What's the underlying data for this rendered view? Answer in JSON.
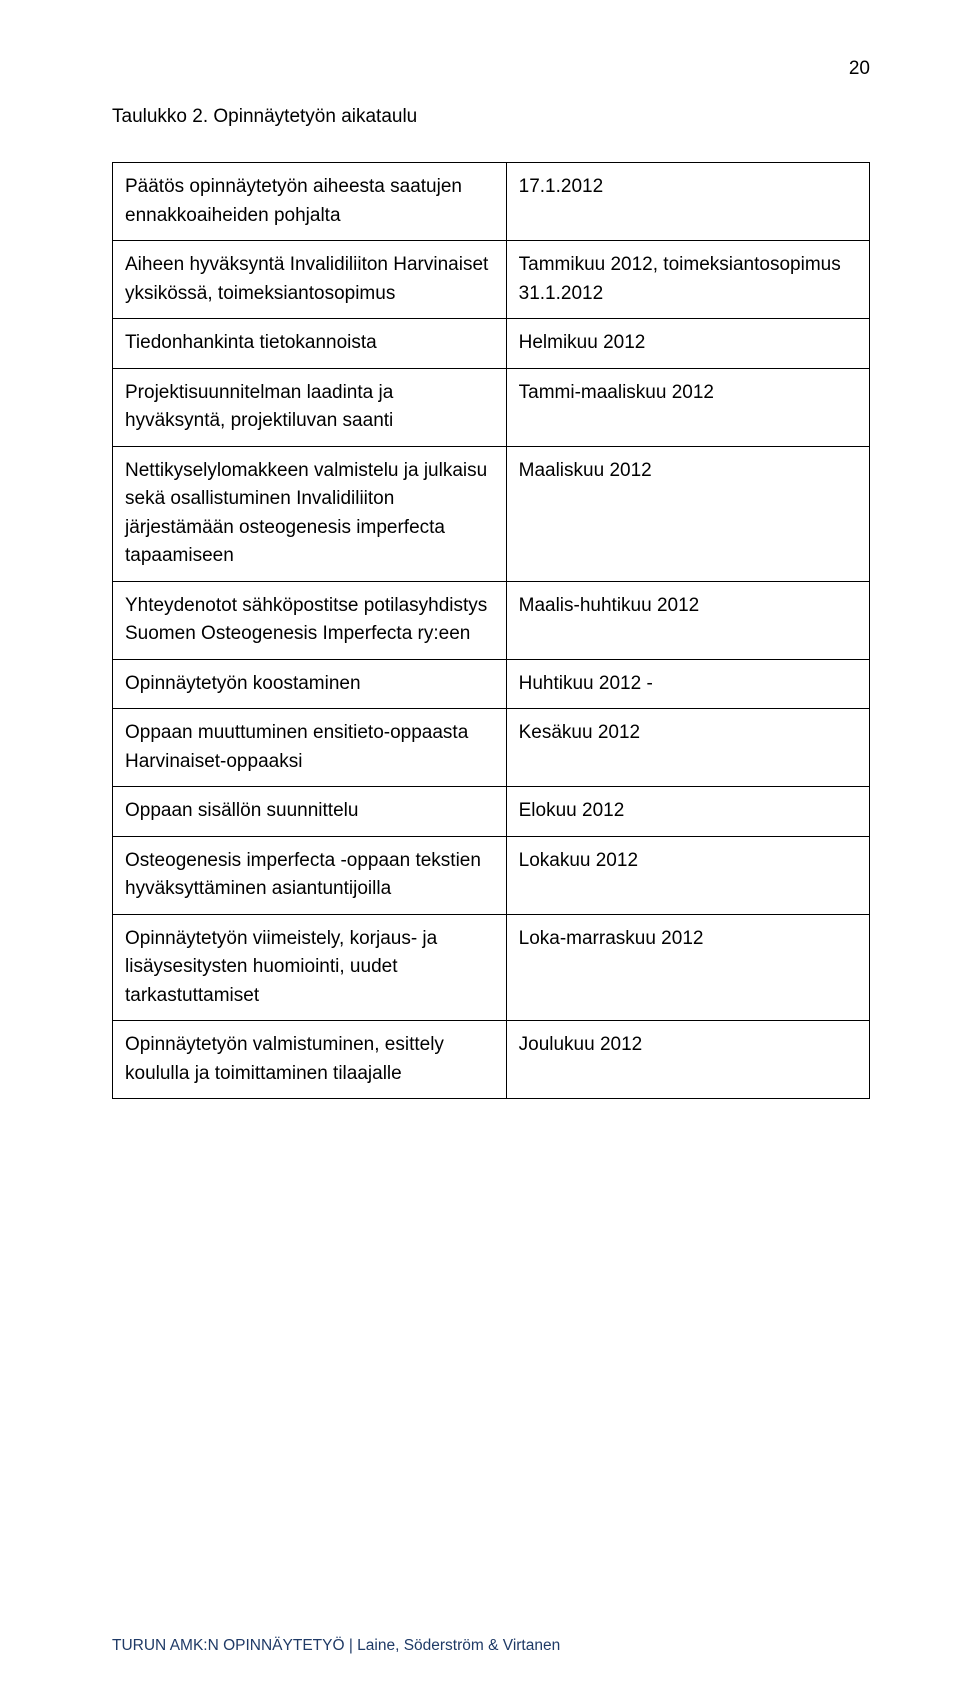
{
  "page_number": "20",
  "caption": "Taulukko 2. Opinnäytetyön aikataulu",
  "rows": [
    {
      "left": "Päätös opinnäytetyön aiheesta saatujen ennakkoaiheiden pohjalta",
      "right": "17.1.2012"
    },
    {
      "left": "Aiheen hyväksyntä Invalidiliiton Harvinaiset yksikössä, toimeksiantosopimus",
      "right": "Tammikuu 2012, toimeksiantosopimus 31.1.2012"
    },
    {
      "left": "Tiedonhankinta tietokannoista",
      "right": "Helmikuu 2012"
    },
    {
      "left": "Projektisuunnitelman laadinta ja hyväksyntä, projektiluvan saanti",
      "right": "Tammi-maaliskuu 2012"
    },
    {
      "left": "Nettikyselylomakkeen valmistelu ja julkaisu sekä osallistuminen Invalidiliiton järjestämään osteogenesis imperfecta tapaamiseen",
      "right": "Maaliskuu 2012"
    },
    {
      "left": "Yhteydenotot sähköpostitse potilasyhdistys  Suomen Osteogenesis Imperfecta ry:een",
      "right": "Maalis-huhtikuu 2012"
    },
    {
      "left": "Opinnäytetyön koostaminen",
      "right": "Huhtikuu 2012 -"
    },
    {
      "left": "Oppaan muuttuminen ensitieto-oppaasta Harvinaiset-oppaaksi",
      "right": "Kesäkuu 2012"
    },
    {
      "left": "Oppaan sisällön suunnittelu",
      "right": "Elokuu 2012"
    },
    {
      "left": "Osteogenesis imperfecta -oppaan tekstien hyväksyttäminen asiantuntijoilla",
      "right": "Lokakuu 2012"
    },
    {
      "left": "Opinnäytetyön viimeistely, korjaus- ja lisäysesitysten huomiointi, uudet tarkastuttamiset",
      "right": "Loka-marraskuu 2012"
    },
    {
      "left": "Opinnäytetyön valmistuminen, esittely koululla ja toimittaminen tilaajalle",
      "right": "Joulukuu 2012"
    }
  ],
  "footer": "TURUN AMK:N OPINNÄYTETYÖ | Laine, Söderström & Virtanen",
  "table_style": {
    "border_color": "#000000",
    "font_size_pt": 14,
    "line_height": 1.5,
    "left_col_pct": 52,
    "right_col_pct": 48
  },
  "colors": {
    "text": "#000000",
    "footer": "#1f3a66",
    "background": "#ffffff"
  }
}
